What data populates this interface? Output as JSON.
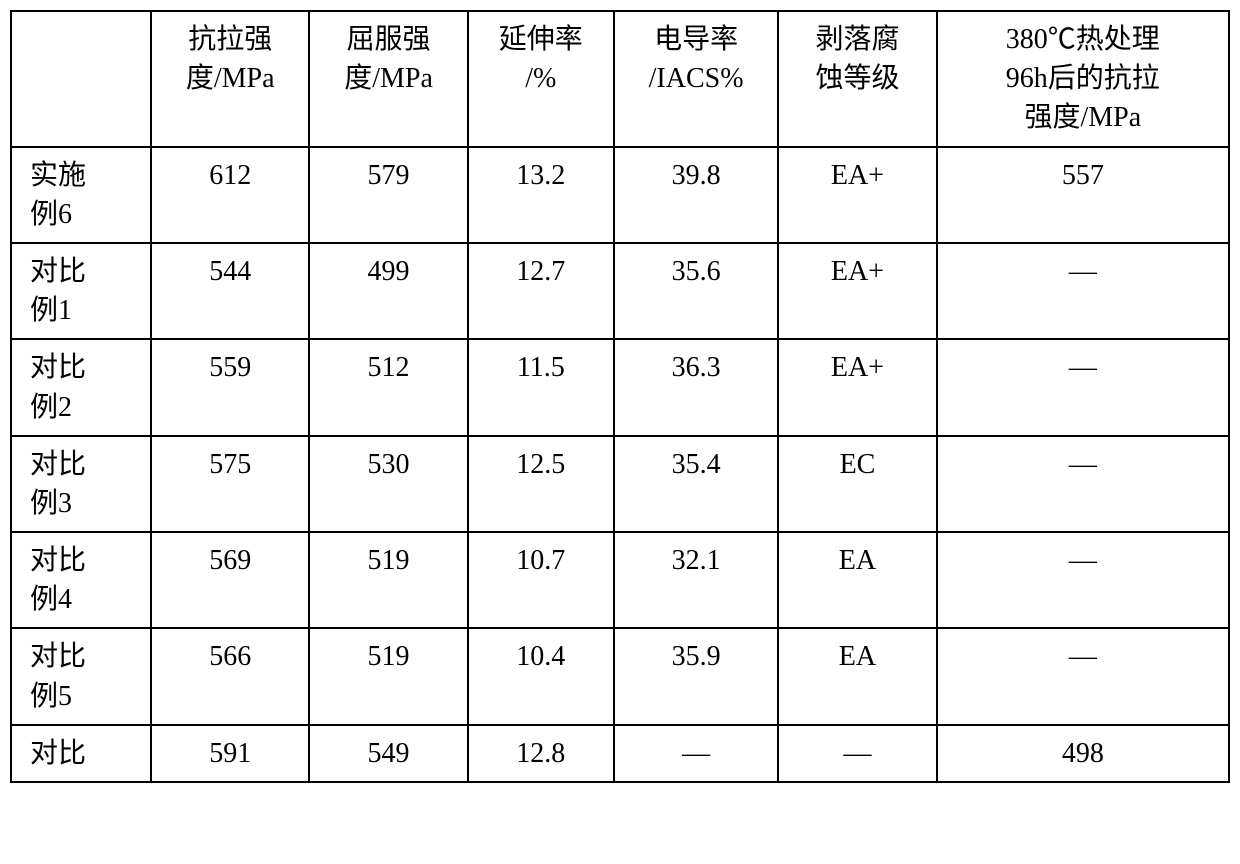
{
  "table": {
    "type": "table",
    "border_color": "#000000",
    "background_color": "#ffffff",
    "text_color": "#000000",
    "font_family": "SimSun",
    "font_size_pt": 21,
    "column_widths_pct": [
      11.5,
      13,
      13,
      12,
      13.5,
      13,
      24
    ],
    "columns": [
      "",
      "抗拉强\n度/MPa",
      "屈服强\n度/MPa",
      "延伸率\n/%",
      "电导率\n/IACS%",
      "剥落腐\n蚀等级",
      "380℃热处理\n96h后的抗拉\n强度/MPa"
    ],
    "rows": [
      {
        "label": "实施\n例6",
        "cells": [
          "612",
          "579",
          "13.2",
          "39.8",
          "EA+",
          "557"
        ]
      },
      {
        "label": "对比\n例1",
        "cells": [
          "544",
          "499",
          "12.7",
          "35.6",
          "EA+",
          "—"
        ]
      },
      {
        "label": "对比\n例2",
        "cells": [
          "559",
          "512",
          "11.5",
          "36.3",
          "EA+",
          "—"
        ]
      },
      {
        "label": "对比\n例3",
        "cells": [
          "575",
          "530",
          "12.5",
          "35.4",
          "EC",
          "—"
        ]
      },
      {
        "label": "对比\n例4",
        "cells": [
          "569",
          "519",
          "10.7",
          "32.1",
          "EA",
          "—"
        ]
      },
      {
        "label": "对比\n例5",
        "cells": [
          "566",
          "519",
          "10.4",
          "35.9",
          "EA",
          "—"
        ]
      },
      {
        "label": "对比",
        "cells": [
          "591",
          "549",
          "12.8",
          "—",
          "—",
          "498"
        ]
      }
    ]
  }
}
